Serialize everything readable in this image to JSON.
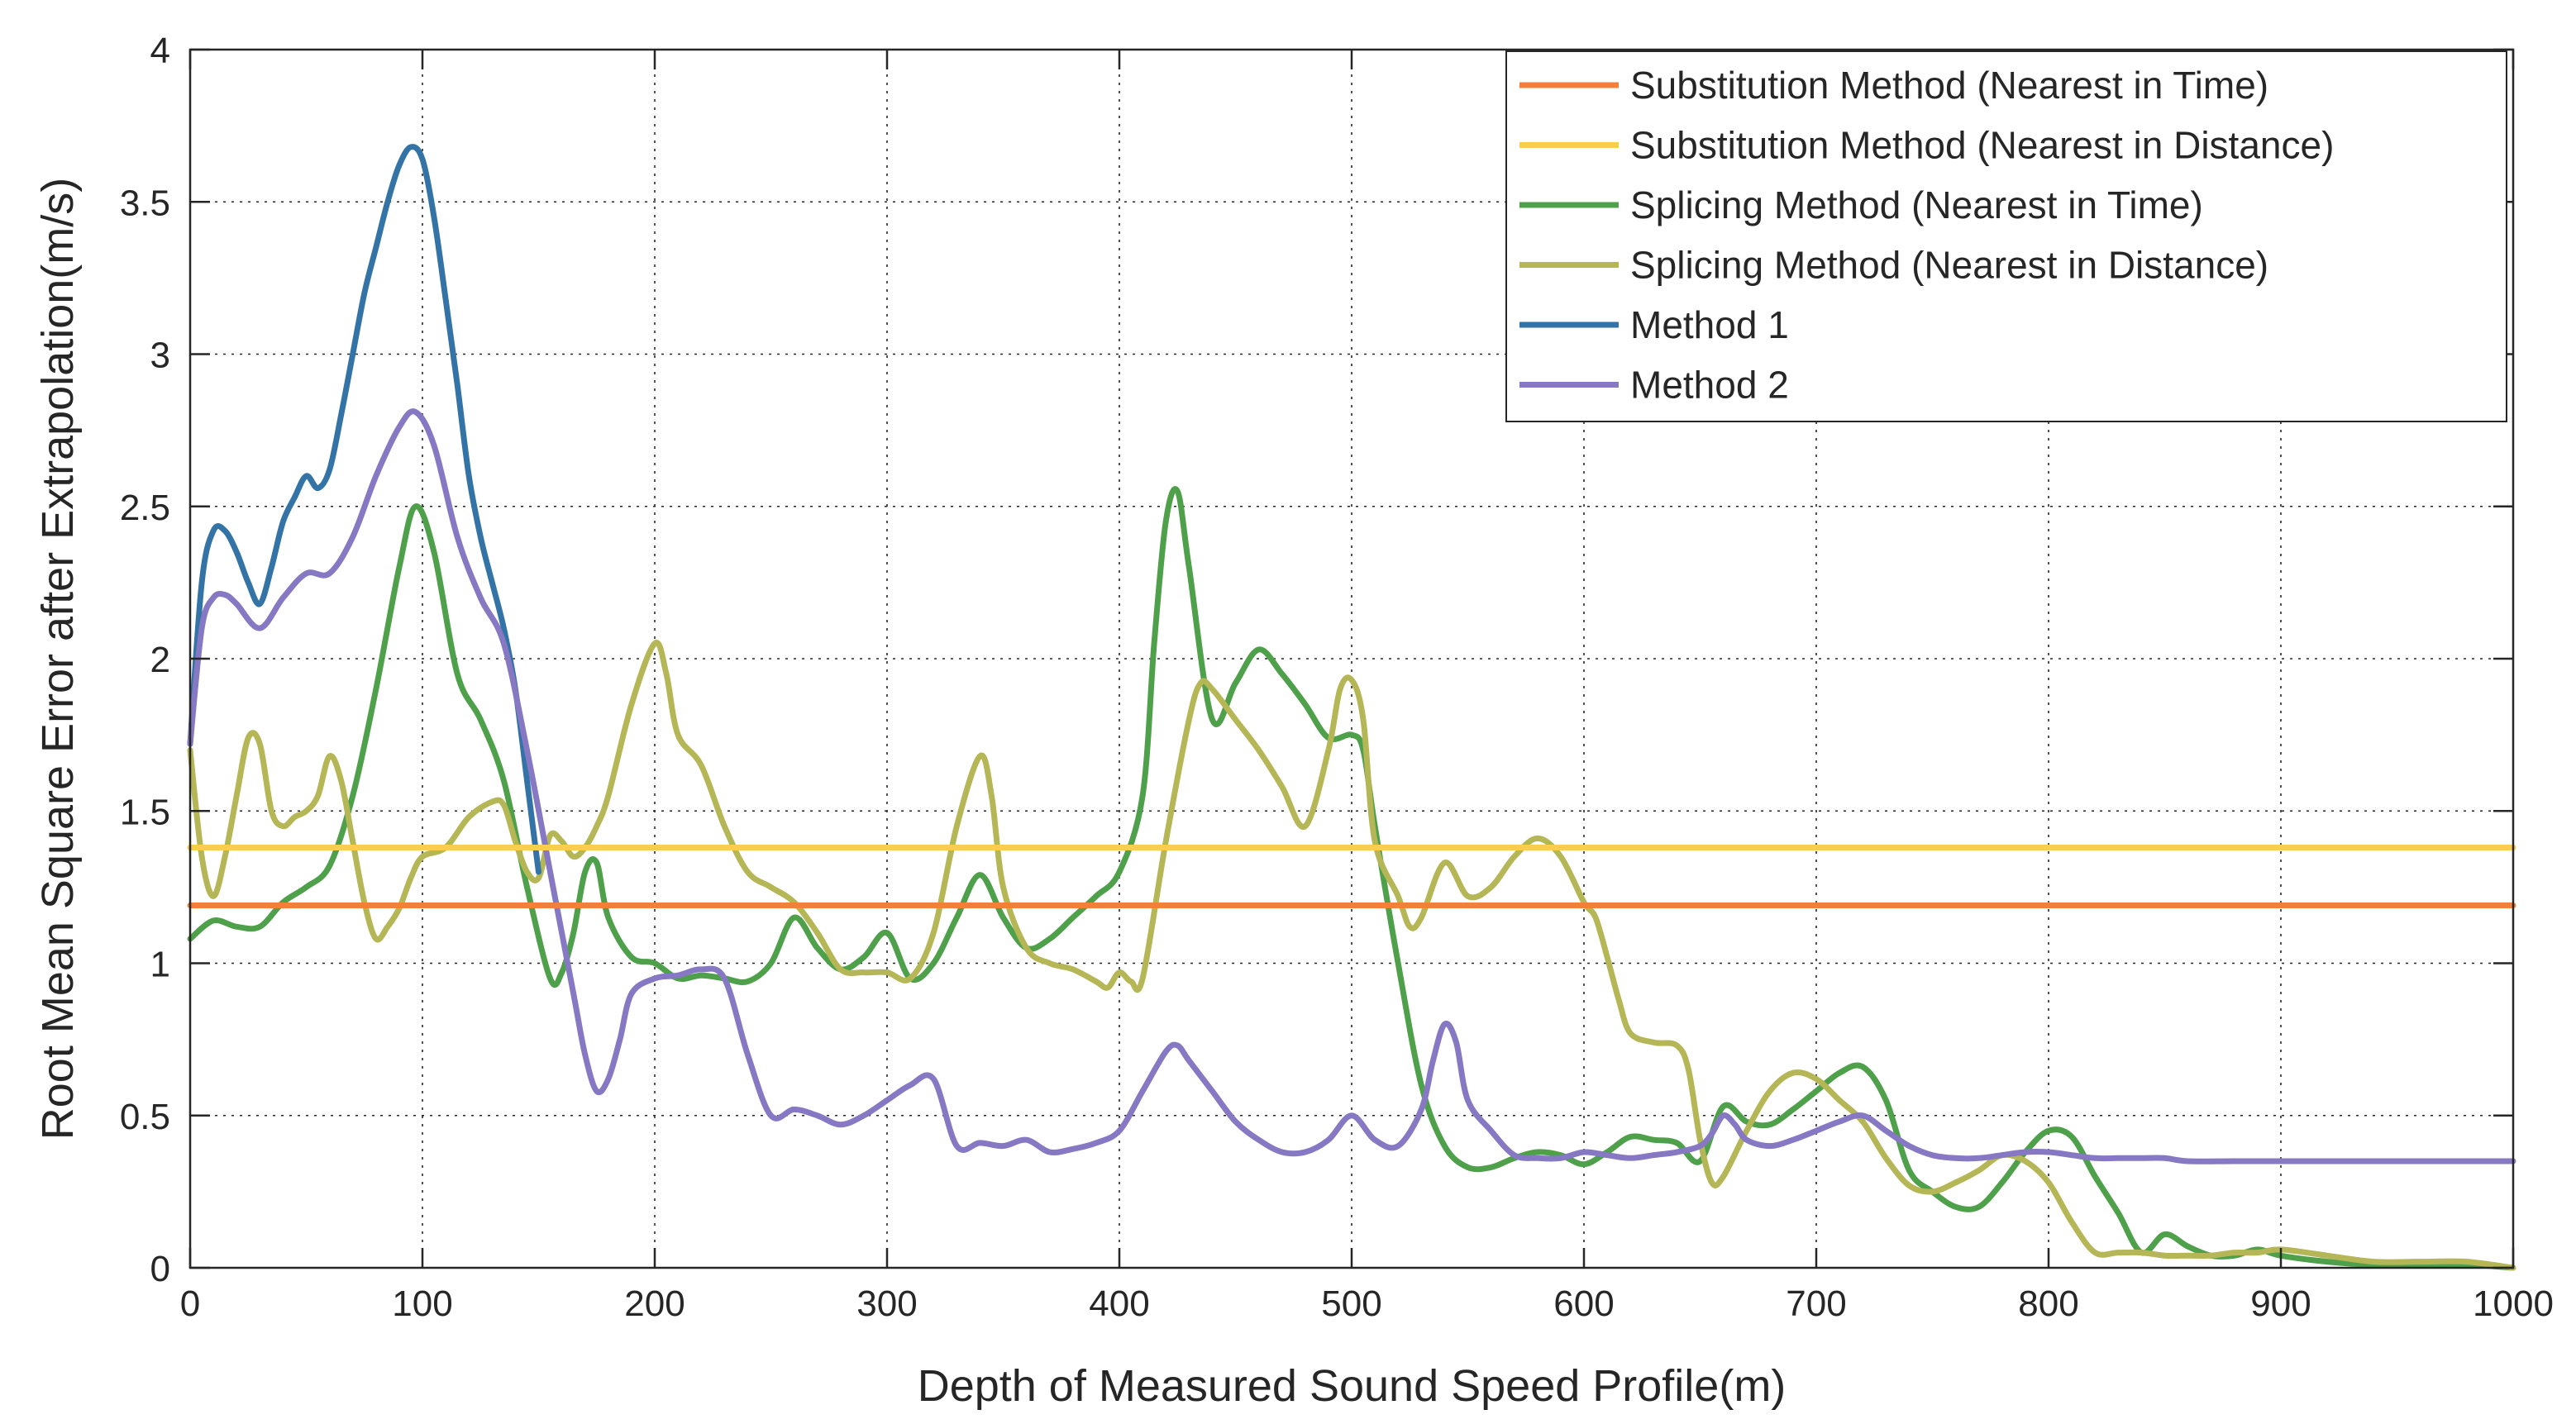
{
  "chart_data": {
    "type": "line",
    "title": "",
    "xlabel": "Depth of Measured Sound Speed Profile(m)",
    "ylabel": "Root Mean Square Error after Extrapolation(m/s)",
    "xlim": [
      0,
      1000
    ],
    "ylim": [
      0,
      4
    ],
    "xticks": [
      0,
      100,
      200,
      300,
      400,
      500,
      600,
      700,
      800,
      900,
      1000
    ],
    "yticks": [
      0,
      0.5,
      1,
      1.5,
      2,
      2.5,
      3,
      3.5,
      4
    ],
    "xtick_labels": [
      "0",
      "100",
      "200",
      "300",
      "400",
      "500",
      "600",
      "700",
      "800",
      "900",
      "1000"
    ],
    "ytick_labels": [
      "0",
      "0.5",
      "1",
      "1.5",
      "2",
      "2.5",
      "3",
      "3.5",
      "4"
    ],
    "grid": true,
    "legend_position": "top-right",
    "series": [
      {
        "name": "Substitution Method (Nearest in Time)",
        "color": "#F47F3A",
        "x": [
          0,
          1000
        ],
        "y": [
          1.19,
          1.19
        ]
      },
      {
        "name": "Substitution Method (Nearest in Distance)",
        "color": "#F8CE4E",
        "x": [
          0,
          1000
        ],
        "y": [
          1.38,
          1.38
        ]
      },
      {
        "name": "Splicing Method (Nearest in Time)",
        "color": "#4FA04A",
        "x": [
          0,
          10,
          20,
          30,
          40,
          50,
          60,
          70,
          80,
          90,
          97,
          105,
          115,
          125,
          135,
          145,
          155,
          160,
          165,
          170,
          175,
          180,
          190,
          200,
          210,
          220,
          230,
          240,
          250,
          260,
          270,
          280,
          290,
          300,
          310,
          320,
          330,
          340,
          350,
          360,
          370,
          380,
          390,
          400,
          410,
          415,
          420,
          425,
          430,
          440,
          450,
          460,
          470,
          480,
          490,
          500,
          505,
          510,
          520,
          530,
          540,
          550,
          560,
          570,
          580,
          590,
          600,
          610,
          620,
          630,
          640,
          650,
          660,
          670,
          680,
          690,
          700,
          710,
          720,
          730,
          740,
          750,
          760,
          770,
          780,
          790,
          800,
          810,
          820,
          830,
          840,
          850,
          860,
          870,
          880,
          890,
          900,
          920,
          940,
          960,
          980,
          1000
        ],
        "y": [
          1.08,
          1.14,
          1.12,
          1.12,
          1.2,
          1.25,
          1.32,
          1.55,
          1.9,
          2.3,
          2.5,
          2.35,
          1.95,
          1.8,
          1.6,
          1.25,
          0.95,
          0.97,
          1.1,
          1.3,
          1.33,
          1.15,
          1.02,
          1.0,
          0.95,
          0.96,
          0.95,
          0.94,
          1.0,
          1.15,
          1.05,
          0.98,
          1.02,
          1.1,
          0.95,
          1.0,
          1.15,
          1.29,
          1.15,
          1.05,
          1.08,
          1.15,
          1.22,
          1.3,
          1.55,
          2.05,
          2.45,
          2.55,
          2.3,
          1.8,
          1.92,
          2.03,
          1.95,
          1.85,
          1.74,
          1.75,
          1.7,
          1.45,
          1.0,
          0.6,
          0.4,
          0.33,
          0.33,
          0.36,
          0.38,
          0.37,
          0.34,
          0.38,
          0.43,
          0.42,
          0.41,
          0.35,
          0.53,
          0.48,
          0.47,
          0.52,
          0.58,
          0.64,
          0.66,
          0.55,
          0.32,
          0.25,
          0.2,
          0.2,
          0.28,
          0.38,
          0.45,
          0.43,
          0.3,
          0.18,
          0.05,
          0.11,
          0.07,
          0.04,
          0.04,
          0.06,
          0.04,
          0.02,
          0.01,
          0.01,
          0.01,
          0.0
        ]
      },
      {
        "name": "Splicing Method (Nearest in Distance)",
        "color": "#B5B655",
        "x": [
          0,
          5,
          10,
          15,
          20,
          25,
          30,
          35,
          40,
          45,
          50,
          55,
          60,
          65,
          70,
          75,
          80,
          85,
          90,
          95,
          100,
          110,
          120,
          130,
          135,
          140,
          145,
          150,
          155,
          160,
          165,
          170,
          175,
          180,
          190,
          200,
          205,
          210,
          220,
          230,
          240,
          250,
          260,
          270,
          280,
          290,
          300,
          310,
          320,
          330,
          340,
          345,
          350,
          360,
          370,
          380,
          390,
          395,
          400,
          405,
          410,
          420,
          430,
          435,
          440,
          450,
          460,
          470,
          480,
          490,
          495,
          500,
          505,
          510,
          520,
          525,
          530,
          540,
          550,
          560,
          570,
          580,
          590,
          600,
          605,
          610,
          615,
          620,
          630,
          640,
          645,
          650,
          655,
          660,
          670,
          680,
          690,
          700,
          710,
          720,
          730,
          740,
          750,
          760,
          770,
          780,
          790,
          800,
          810,
          820,
          830,
          840,
          850,
          860,
          870,
          880,
          890,
          900,
          920,
          940,
          960,
          980,
          1000
        ],
        "y": [
          1.7,
          1.35,
          1.22,
          1.35,
          1.55,
          1.74,
          1.72,
          1.5,
          1.45,
          1.48,
          1.5,
          1.55,
          1.68,
          1.6,
          1.4,
          1.2,
          1.08,
          1.12,
          1.18,
          1.28,
          1.35,
          1.38,
          1.48,
          1.53,
          1.52,
          1.4,
          1.3,
          1.28,
          1.42,
          1.4,
          1.35,
          1.38,
          1.45,
          1.55,
          1.85,
          2.05,
          1.95,
          1.75,
          1.65,
          1.45,
          1.3,
          1.25,
          1.2,
          1.1,
          0.98,
          0.97,
          0.97,
          0.95,
          1.1,
          1.45,
          1.68,
          1.55,
          1.25,
          1.05,
          1.0,
          0.98,
          0.94,
          0.92,
          0.97,
          0.94,
          0.95,
          1.4,
          1.8,
          1.92,
          1.9,
          1.8,
          1.7,
          1.58,
          1.45,
          1.7,
          1.9,
          1.93,
          1.8,
          1.4,
          1.22,
          1.12,
          1.15,
          1.33,
          1.22,
          1.25,
          1.35,
          1.41,
          1.35,
          1.2,
          1.15,
          1.02,
          0.88,
          0.77,
          0.74,
          0.73,
          0.65,
          0.42,
          0.28,
          0.3,
          0.45,
          0.58,
          0.64,
          0.62,
          0.55,
          0.48,
          0.36,
          0.27,
          0.25,
          0.28,
          0.32,
          0.37,
          0.35,
          0.28,
          0.15,
          0.05,
          0.05,
          0.05,
          0.04,
          0.04,
          0.04,
          0.05,
          0.05,
          0.06,
          0.04,
          0.02,
          0.02,
          0.02,
          0.0
        ]
      },
      {
        "name": "Method 1",
        "color": "#3373A6",
        "x": [
          0,
          5,
          10,
          15,
          20,
          25,
          30,
          35,
          40,
          45,
          50,
          55,
          60,
          65,
          70,
          75,
          80,
          85,
          90,
          95,
          100,
          105,
          110,
          115,
          120,
          125,
          130,
          135,
          140,
          145,
          150
        ],
        "y": [
          1.72,
          2.25,
          2.42,
          2.42,
          2.35,
          2.25,
          2.18,
          2.3,
          2.45,
          2.53,
          2.6,
          2.56,
          2.62,
          2.8,
          3.0,
          3.2,
          3.35,
          3.5,
          3.62,
          3.68,
          3.64,
          3.45,
          3.18,
          2.9,
          2.6,
          2.4,
          2.25,
          2.1,
          1.9,
          1.6,
          1.3
        ]
      },
      {
        "name": "Method 2",
        "color": "#8678C2",
        "x": [
          0,
          5,
          10,
          15,
          20,
          30,
          40,
          50,
          60,
          70,
          80,
          90,
          97,
          105,
          115,
          125,
          135,
          145,
          155,
          165,
          170,
          175,
          180,
          185,
          190,
          200,
          210,
          220,
          230,
          240,
          250,
          260,
          270,
          280,
          290,
          300,
          310,
          320,
          330,
          340,
          350,
          360,
          370,
          380,
          390,
          400,
          410,
          420,
          425,
          430,
          440,
          450,
          460,
          470,
          480,
          490,
          500,
          510,
          520,
          530,
          535,
          540,
          545,
          550,
          560,
          570,
          580,
          590,
          600,
          610,
          620,
          630,
          640,
          650,
          655,
          660,
          665,
          670,
          680,
          690,
          700,
          710,
          720,
          730,
          740,
          750,
          760,
          770,
          780,
          790,
          800,
          810,
          820,
          830,
          840,
          850,
          860,
          880,
          900,
          920,
          940,
          960,
          980,
          1000
        ],
        "y": [
          1.72,
          2.1,
          2.2,
          2.21,
          2.18,
          2.1,
          2.2,
          2.28,
          2.28,
          2.4,
          2.6,
          2.76,
          2.81,
          2.7,
          2.4,
          2.2,
          2.05,
          1.7,
          1.3,
          0.9,
          0.7,
          0.58,
          0.62,
          0.75,
          0.9,
          0.95,
          0.96,
          0.98,
          0.95,
          0.7,
          0.5,
          0.52,
          0.5,
          0.47,
          0.5,
          0.55,
          0.6,
          0.62,
          0.4,
          0.41,
          0.4,
          0.42,
          0.38,
          0.39,
          0.41,
          0.45,
          0.58,
          0.71,
          0.73,
          0.68,
          0.58,
          0.48,
          0.42,
          0.38,
          0.38,
          0.42,
          0.5,
          0.42,
          0.4,
          0.52,
          0.68,
          0.8,
          0.74,
          0.55,
          0.45,
          0.37,
          0.36,
          0.36,
          0.38,
          0.37,
          0.36,
          0.37,
          0.38,
          0.4,
          0.44,
          0.5,
          0.47,
          0.42,
          0.4,
          0.42,
          0.45,
          0.48,
          0.5,
          0.45,
          0.4,
          0.37,
          0.36,
          0.36,
          0.37,
          0.38,
          0.38,
          0.37,
          0.36,
          0.36,
          0.36,
          0.36,
          0.35,
          0.35,
          0.35,
          0.35,
          0.35,
          0.35,
          0.35,
          0.35
        ]
      }
    ]
  }
}
